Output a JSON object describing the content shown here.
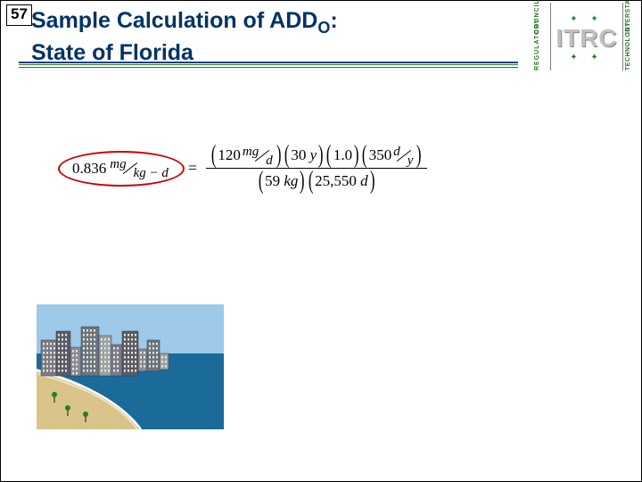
{
  "slideNumber": "57",
  "title": {
    "line1_pre": "Sample Calculation of ADD",
    "line1_sub": "O",
    "line1_post": ":",
    "line2": "State of Florida"
  },
  "logo": {
    "leftTop": "COUNCIL",
    "leftBottom": "REGULATORY",
    "rightTop": "INTERSTATE",
    "rightBottom": "TECHNOLOGY",
    "center": "ITRC",
    "bullets": "✦  ✦"
  },
  "equation": {
    "lhs": {
      "value": "0.836",
      "unitNum": "mg",
      "unitDen": "kg − d"
    },
    "numerator": {
      "t1": {
        "val": "120",
        "unitNum": "mg",
        "unitDen": "d"
      },
      "t2": {
        "val": "30",
        "unit": "y"
      },
      "t3": {
        "val": "1.0"
      },
      "t4": {
        "val": "350",
        "unitNum": "d",
        "unitDen": "y"
      }
    },
    "denominator": {
      "t1": {
        "val": "59",
        "unit": "kg"
      },
      "t2": {
        "val": "25,550",
        "unit": "d"
      }
    }
  },
  "illustration": {
    "sky": "#9ec9e8",
    "sea": "#1a6a9a",
    "sand": "#d9c48a",
    "waveLine": "#ffffff",
    "buildingColors": [
      "#7a7a8a",
      "#5a5a6a",
      "#8a8a9a",
      "#6a7580",
      "#9aa0a8"
    ],
    "treeGreen": "#2a7a2a"
  }
}
